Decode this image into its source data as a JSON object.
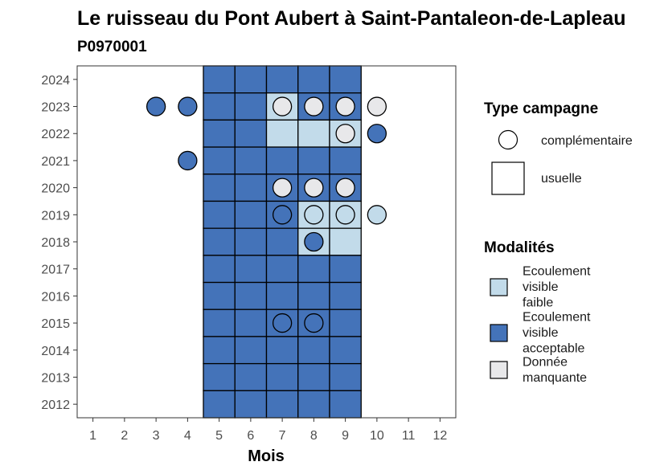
{
  "chart_data": {
    "type": "heatmap",
    "title": "Le ruisseau du Pont Aubert à Saint-Pantaleon-de-Lapleau",
    "subtitle": "P0970001",
    "xlabel": "Mois",
    "ylabel": "",
    "x_ticks": [
      "1",
      "2",
      "3",
      "4",
      "5",
      "6",
      "7",
      "8",
      "9",
      "10",
      "11",
      "12"
    ],
    "y_ticks": [
      "2012",
      "2013",
      "2014",
      "2015",
      "2016",
      "2017",
      "2018",
      "2019",
      "2020",
      "2021",
      "2022",
      "2023",
      "2024"
    ],
    "xlim": [
      0.5,
      12.5
    ],
    "ylim": [
      2011.5,
      2024.5
    ],
    "grid": false,
    "colors": {
      "Ecoulement visible faible": "#c2dbea",
      "Ecoulement visible acceptable": "#4473b9",
      "Donnée manquante": "#e8e8ea"
    },
    "tiles_usuelle": [
      {
        "year": 2024,
        "months": [
          5,
          6,
          7,
          8,
          9
        ],
        "values": [
          "Ecoulement visible acceptable",
          "Ecoulement visible acceptable",
          "Ecoulement visible acceptable",
          "Ecoulement visible acceptable",
          "Ecoulement visible acceptable"
        ]
      },
      {
        "year": 2023,
        "months": [
          5,
          6,
          7,
          8,
          9
        ],
        "values": [
          "Ecoulement visible acceptable",
          "Ecoulement visible acceptable",
          "Ecoulement visible faible",
          "Ecoulement visible acceptable",
          "Ecoulement visible acceptable"
        ]
      },
      {
        "year": 2022,
        "months": [
          5,
          6,
          7,
          8,
          9
        ],
        "values": [
          "Ecoulement visible acceptable",
          "Ecoulement visible acceptable",
          "Ecoulement visible faible",
          "Ecoulement visible faible",
          "Ecoulement visible faible"
        ]
      },
      {
        "year": 2021,
        "months": [
          5,
          6,
          7,
          8,
          9
        ],
        "values": [
          "Ecoulement visible acceptable",
          "Ecoulement visible acceptable",
          "Ecoulement visible acceptable",
          "Ecoulement visible acceptable",
          "Ecoulement visible acceptable"
        ]
      },
      {
        "year": 2020,
        "months": [
          5,
          6,
          7,
          8,
          9
        ],
        "values": [
          "Ecoulement visible acceptable",
          "Ecoulement visible acceptable",
          "Ecoulement visible acceptable",
          "Ecoulement visible acceptable",
          "Ecoulement visible acceptable"
        ]
      },
      {
        "year": 2019,
        "months": [
          5,
          6,
          7,
          8,
          9
        ],
        "values": [
          "Ecoulement visible acceptable",
          "Ecoulement visible acceptable",
          "Ecoulement visible acceptable",
          "Ecoulement visible faible",
          "Ecoulement visible faible"
        ]
      },
      {
        "year": 2018,
        "months": [
          5,
          6,
          7,
          8,
          9
        ],
        "values": [
          "Ecoulement visible acceptable",
          "Ecoulement visible acceptable",
          "Ecoulement visible acceptable",
          "Ecoulement visible faible",
          "Ecoulement visible faible"
        ]
      },
      {
        "year": 2017,
        "months": [
          5,
          6,
          7,
          8,
          9
        ],
        "values": [
          "Ecoulement visible acceptable",
          "Ecoulement visible acceptable",
          "Ecoulement visible acceptable",
          "Ecoulement visible acceptable",
          "Ecoulement visible acceptable"
        ]
      },
      {
        "year": 2016,
        "months": [
          5,
          6,
          7,
          8,
          9
        ],
        "values": [
          "Ecoulement visible acceptable",
          "Ecoulement visible acceptable",
          "Ecoulement visible acceptable",
          "Ecoulement visible acceptable",
          "Ecoulement visible acceptable"
        ]
      },
      {
        "year": 2015,
        "months": [
          5,
          6,
          7,
          8,
          9
        ],
        "values": [
          "Ecoulement visible acceptable",
          "Ecoulement visible acceptable",
          "Ecoulement visible acceptable",
          "Ecoulement visible acceptable",
          "Ecoulement visible acceptable"
        ]
      },
      {
        "year": 2014,
        "months": [
          5,
          6,
          7,
          8,
          9
        ],
        "values": [
          "Ecoulement visible acceptable",
          "Ecoulement visible acceptable",
          "Ecoulement visible acceptable",
          "Ecoulement visible acceptable",
          "Ecoulement visible acceptable"
        ]
      },
      {
        "year": 2013,
        "months": [
          5,
          6,
          7,
          8,
          9
        ],
        "values": [
          "Ecoulement visible acceptable",
          "Ecoulement visible acceptable",
          "Ecoulement visible acceptable",
          "Ecoulement visible acceptable",
          "Ecoulement visible acceptable"
        ]
      },
      {
        "year": 2012,
        "months": [
          5,
          6,
          7,
          8,
          9
        ],
        "values": [
          "Ecoulement visible acceptable",
          "Ecoulement visible acceptable",
          "Ecoulement visible acceptable",
          "Ecoulement visible acceptable",
          "Ecoulement visible acceptable"
        ]
      }
    ],
    "points_complementaire": [
      {
        "year": 2023,
        "month": 3,
        "value": "Ecoulement visible acceptable"
      },
      {
        "year": 2023,
        "month": 4,
        "value": "Ecoulement visible acceptable"
      },
      {
        "year": 2023,
        "month": 7,
        "value": "Donnée manquante"
      },
      {
        "year": 2023,
        "month": 8,
        "value": "Donnée manquante"
      },
      {
        "year": 2023,
        "month": 9,
        "value": "Donnée manquante"
      },
      {
        "year": 2023,
        "month": 10,
        "value": "Donnée manquante"
      },
      {
        "year": 2022,
        "month": 9,
        "value": "Donnée manquante"
      },
      {
        "year": 2022,
        "month": 10,
        "value": "Ecoulement visible acceptable"
      },
      {
        "year": 2021,
        "month": 4,
        "value": "Ecoulement visible acceptable"
      },
      {
        "year": 2020,
        "month": 7,
        "value": "Donnée manquante"
      },
      {
        "year": 2020,
        "month": 8,
        "value": "Donnée manquante"
      },
      {
        "year": 2020,
        "month": 9,
        "value": "Donnée manquante"
      },
      {
        "year": 2019,
        "month": 7,
        "value": "Ecoulement visible acceptable"
      },
      {
        "year": 2019,
        "month": 8,
        "value": "Ecoulement visible faible"
      },
      {
        "year": 2019,
        "month": 9,
        "value": "Ecoulement visible faible"
      },
      {
        "year": 2019,
        "month": 10,
        "value": "Ecoulement visible faible"
      },
      {
        "year": 2018,
        "month": 8,
        "value": "Ecoulement visible acceptable"
      },
      {
        "year": 2015,
        "month": 7,
        "value": "Ecoulement visible acceptable"
      },
      {
        "year": 2015,
        "month": 8,
        "value": "Ecoulement visible acceptable"
      }
    ],
    "legend": {
      "placement": "right",
      "shape_title": "Type campagne",
      "shape_items": [
        {
          "label": "complémentaire",
          "shape": "circle"
        },
        {
          "label": "usuelle",
          "shape": "square"
        }
      ],
      "fill_title": "Modalités",
      "fill_items": [
        {
          "lines": [
            "Ecoulement",
            "visible",
            "faible"
          ],
          "value": "Ecoulement visible faible"
        },
        {
          "lines": [
            "Ecoulement",
            "visible",
            "acceptable"
          ],
          "value": "Ecoulement visible acceptable"
        },
        {
          "lines": [
            "Donnée",
            "manquante"
          ],
          "value": "Donnée manquante"
        }
      ]
    }
  }
}
